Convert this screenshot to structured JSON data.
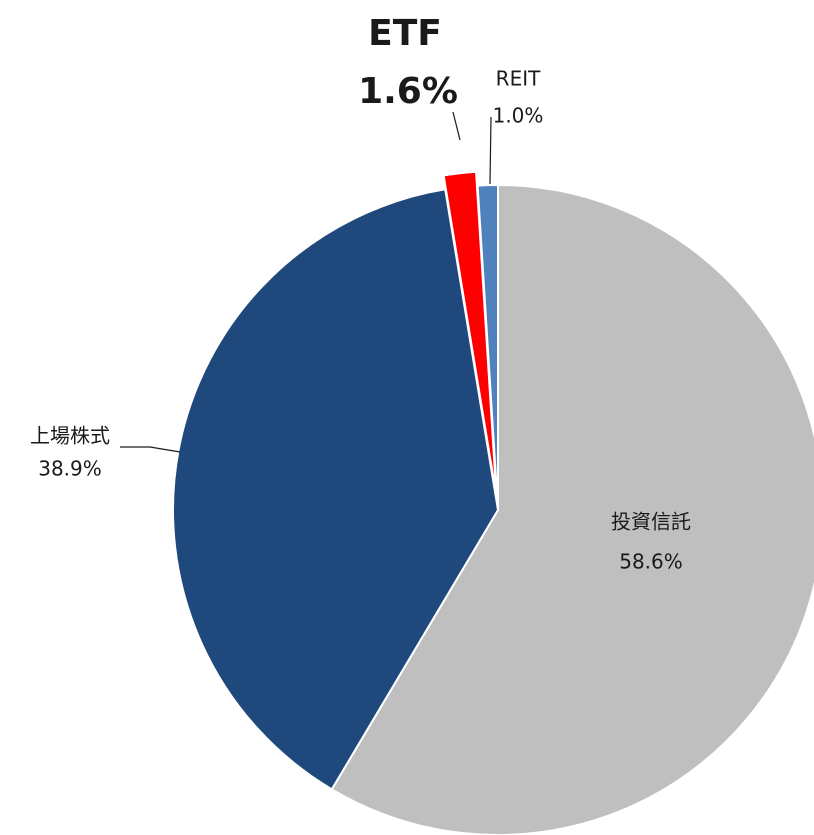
{
  "chart_data": {
    "type": "pie",
    "categories": [
      "投資信託",
      "上場株式",
      "ETF",
      "REIT"
    ],
    "values": [
      58.6,
      38.9,
      1.6,
      1.0
    ],
    "value_labels": [
      "58.6%",
      "38.9%",
      "1.6%",
      "1.0%"
    ],
    "colors": [
      "#bfbfbf",
      "#1f497d",
      "#ff0000",
      "#4f81bd"
    ]
  }
}
